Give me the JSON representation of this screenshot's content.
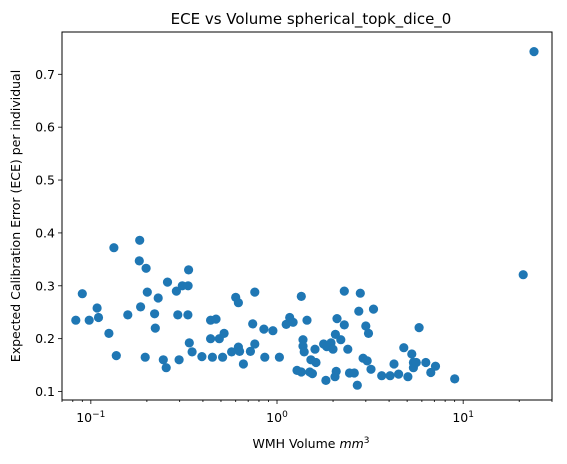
{
  "chart_data": {
    "type": "scatter",
    "title": "ECE vs Volume spherical_topk_dice_0",
    "xlabel_text": "WMH Volume ",
    "xlabel_unit": "mm",
    "xlabel_unit_exp": "3",
    "ylabel": "Expected Calibration Error (ECE) per individual",
    "xscale": "log",
    "xlim": [
      0.07,
      30
    ],
    "ylim": [
      0.084,
      0.78
    ],
    "x_ticks": [
      {
        "value": 0.1,
        "base": "10",
        "exp": "−1"
      },
      {
        "value": 1,
        "base": "10",
        "exp": "0"
      },
      {
        "value": 10,
        "base": "10",
        "exp": "1"
      }
    ],
    "y_ticks": [
      {
        "value": 0.1,
        "label": "0.1"
      },
      {
        "value": 0.2,
        "label": "0.2"
      },
      {
        "value": 0.3,
        "label": "0.3"
      },
      {
        "value": 0.4,
        "label": "0.4"
      },
      {
        "value": 0.5,
        "label": "0.5"
      },
      {
        "value": 0.6,
        "label": "0.6"
      },
      {
        "value": 0.7,
        "label": "0.7"
      }
    ],
    "marker_color": "#1f77b4",
    "grid": false,
    "legend": "none",
    "points": [
      [
        0.083,
        0.235
      ],
      [
        0.09,
        0.285
      ],
      [
        0.098,
        0.235
      ],
      [
        0.108,
        0.258
      ],
      [
        0.11,
        0.24
      ],
      [
        0.125,
        0.21
      ],
      [
        0.133,
        0.372
      ],
      [
        0.137,
        0.168
      ],
      [
        0.158,
        0.245
      ],
      [
        0.183,
        0.386
      ],
      [
        0.182,
        0.347
      ],
      [
        0.185,
        0.26
      ],
      [
        0.196,
        0.165
      ],
      [
        0.198,
        0.333
      ],
      [
        0.201,
        0.288
      ],
      [
        0.22,
        0.247
      ],
      [
        0.222,
        0.22
      ],
      [
        0.23,
        0.277
      ],
      [
        0.245,
        0.16
      ],
      [
        0.254,
        0.145
      ],
      [
        0.258,
        0.307
      ],
      [
        0.288,
        0.29
      ],
      [
        0.293,
        0.245
      ],
      [
        0.298,
        0.16
      ],
      [
        0.31,
        0.3
      ],
      [
        0.335,
        0.33
      ],
      [
        0.333,
        0.3
      ],
      [
        0.332,
        0.245
      ],
      [
        0.338,
        0.192
      ],
      [
        0.35,
        0.175
      ],
      [
        0.395,
        0.166
      ],
      [
        0.44,
        0.235
      ],
      [
        0.44,
        0.2
      ],
      [
        0.45,
        0.165
      ],
      [
        0.47,
        0.237
      ],
      [
        0.49,
        0.2
      ],
      [
        0.51,
        0.165
      ],
      [
        0.52,
        0.21
      ],
      [
        0.57,
        0.175
      ],
      [
        0.6,
        0.278
      ],
      [
        0.62,
        0.268
      ],
      [
        0.62,
        0.184
      ],
      [
        0.63,
        0.176
      ],
      [
        0.66,
        0.152
      ],
      [
        0.72,
        0.176
      ],
      [
        0.74,
        0.228
      ],
      [
        0.76,
        0.288
      ],
      [
        0.76,
        0.19
      ],
      [
        0.85,
        0.218
      ],
      [
        0.86,
        0.165
      ],
      [
        0.95,
        0.215
      ],
      [
        1.03,
        0.165
      ],
      [
        1.12,
        0.227
      ],
      [
        1.17,
        0.24
      ],
      [
        1.22,
        0.231
      ],
      [
        1.28,
        0.14
      ],
      [
        1.35,
        0.137
      ],
      [
        1.35,
        0.28
      ],
      [
        1.38,
        0.198
      ],
      [
        1.38,
        0.186
      ],
      [
        1.4,
        0.175
      ],
      [
        1.45,
        0.235
      ],
      [
        1.5,
        0.137
      ],
      [
        1.52,
        0.16
      ],
      [
        1.55,
        0.134
      ],
      [
        1.6,
        0.18
      ],
      [
        1.62,
        0.155
      ],
      [
        1.78,
        0.19
      ],
      [
        1.83,
        0.121
      ],
      [
        1.85,
        0.185
      ],
      [
        1.95,
        0.192
      ],
      [
        2.0,
        0.18
      ],
      [
        2.05,
        0.128
      ],
      [
        2.06,
        0.208
      ],
      [
        2.08,
        0.138
      ],
      [
        2.1,
        0.238
      ],
      [
        2.2,
        0.198
      ],
      [
        2.3,
        0.226
      ],
      [
        2.3,
        0.29
      ],
      [
        2.4,
        0.18
      ],
      [
        2.45,
        0.135
      ],
      [
        2.6,
        0.135
      ],
      [
        2.7,
        0.112
      ],
      [
        2.75,
        0.252
      ],
      [
        2.8,
        0.286
      ],
      [
        2.9,
        0.163
      ],
      [
        3.0,
        0.224
      ],
      [
        3.05,
        0.158
      ],
      [
        3.2,
        0.142
      ],
      [
        3.3,
        0.256
      ],
      [
        3.1,
        0.21
      ],
      [
        3.65,
        0.13
      ],
      [
        4.05,
        0.13
      ],
      [
        4.25,
        0.152
      ],
      [
        4.5,
        0.133
      ],
      [
        4.8,
        0.183
      ],
      [
        5.05,
        0.128
      ],
      [
        5.3,
        0.171
      ],
      [
        5.4,
        0.155
      ],
      [
        5.4,
        0.145
      ],
      [
        5.6,
        0.155
      ],
      [
        5.8,
        0.221
      ],
      [
        6.3,
        0.155
      ],
      [
        6.7,
        0.136
      ],
      [
        7.1,
        0.148
      ],
      [
        9.0,
        0.124
      ],
      [
        21.0,
        0.321
      ],
      [
        24.0,
        0.743
      ]
    ]
  }
}
